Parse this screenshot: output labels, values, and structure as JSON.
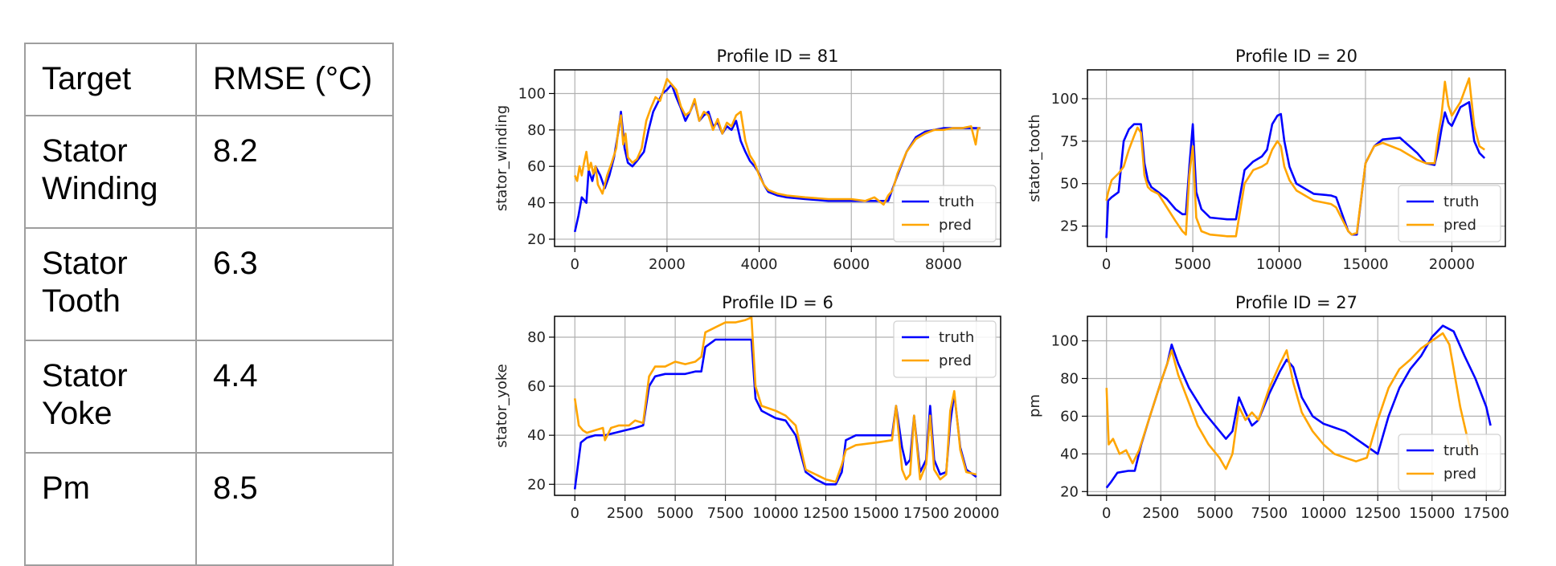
{
  "table": {
    "header": [
      "Target",
      "RMSE (°C)"
    ],
    "rows": [
      [
        "Stator\nWinding",
        "8.2"
      ],
      [
        "Stator\nTooth",
        "6.3"
      ],
      [
        "Stator\nYoke",
        "4.4"
      ],
      [
        "Pm",
        "8.5"
      ]
    ]
  },
  "colors": {
    "truth": "#0000ff",
    "pred": "#ffa500",
    "grid": "#b0b0b0",
    "axis": "#000000"
  },
  "chart_data": [
    {
      "type": "line",
      "title": "Profile ID = 81",
      "ylabel": "stator_winding",
      "xlabel": "",
      "xlim": [
        -440,
        9240
      ],
      "ylim": [
        16,
        113
      ],
      "xticks": [
        0,
        2000,
        4000,
        6000,
        8000
      ],
      "xtick_labels": [
        "0",
        "2000",
        "4000",
        "6000",
        "8000"
      ],
      "yticks": [
        20,
        40,
        60,
        80,
        100
      ],
      "ytick_labels": [
        "20",
        "40",
        "60",
        "80",
        "100"
      ],
      "legend": "lower-right",
      "grid": true,
      "series": [
        {
          "name": "truth",
          "color": "#0000ff",
          "x": [
            0,
            80,
            150,
            250,
            300,
            380,
            450,
            550,
            650,
            750,
            850,
            950,
            1000,
            1080,
            1150,
            1250,
            1350,
            1500,
            1600,
            1700,
            1800,
            1900,
            2000,
            2100,
            2200,
            2300,
            2400,
            2500,
            2600,
            2700,
            2800,
            2900,
            3000,
            3100,
            3200,
            3300,
            3400,
            3500,
            3600,
            3700,
            3800,
            3900,
            4000,
            4100,
            4200,
            4400,
            4600,
            5000,
            5500,
            6000,
            6500,
            6800,
            7000,
            7200,
            7400,
            7600,
            7800,
            8000,
            8200,
            8400,
            8600,
            8800
          ],
          "y": [
            24,
            33,
            43,
            40,
            58,
            52,
            60,
            55,
            48,
            55,
            65,
            80,
            90,
            70,
            62,
            60,
            63,
            68,
            80,
            90,
            95,
            100,
            102,
            105,
            98,
            92,
            85,
            90,
            96,
            85,
            88,
            90,
            82,
            84,
            78,
            82,
            80,
            85,
            74,
            68,
            63,
            60,
            56,
            50,
            46,
            44,
            43,
            42,
            41,
            41,
            41,
            41,
            55,
            68,
            76,
            79,
            80,
            81,
            81,
            81,
            81,
            81
          ]
        },
        {
          "name": "pred",
          "color": "#ffa500",
          "x": [
            0,
            50,
            100,
            150,
            200,
            250,
            300,
            350,
            400,
            450,
            500,
            600,
            700,
            800,
            900,
            950,
            1000,
            1050,
            1100,
            1150,
            1250,
            1350,
            1450,
            1550,
            1650,
            1750,
            1850,
            1950,
            2000,
            2100,
            2200,
            2300,
            2400,
            2500,
            2600,
            2700,
            2800,
            2900,
            3000,
            3100,
            3200,
            3300,
            3400,
            3500,
            3600,
            3700,
            3800,
            3900,
            4000,
            4100,
            4200,
            4400,
            4600,
            5000,
            5500,
            6000,
            6300,
            6500,
            6700,
            6800,
            6900,
            7000,
            7200,
            7400,
            7600,
            7800,
            8000,
            8200,
            8400,
            8600,
            8700,
            8750,
            8800
          ],
          "y": [
            55,
            52,
            60,
            55,
            62,
            68,
            58,
            62,
            56,
            60,
            50,
            45,
            55,
            62,
            70,
            82,
            88,
            72,
            78,
            65,
            62,
            64,
            70,
            85,
            92,
            98,
            96,
            104,
            108,
            105,
            102,
            93,
            88,
            90,
            97,
            85,
            90,
            88,
            80,
            86,
            78,
            84,
            82,
            88,
            90,
            74,
            66,
            62,
            55,
            50,
            47,
            45,
            44,
            43,
            42,
            42,
            41,
            43,
            39,
            44,
            47,
            56,
            68,
            75,
            78,
            80,
            80,
            81,
            81,
            82,
            72,
            81,
            81
          ]
        }
      ]
    },
    {
      "type": "line",
      "title": "Profile ID = 20",
      "ylabel": "stator_tooth",
      "xlabel": "",
      "xlim": [
        -1100,
        23100
      ],
      "ylim": [
        13,
        117
      ],
      "xticks": [
        0,
        5000,
        10000,
        15000,
        20000
      ],
      "xtick_labels": [
        "0",
        "5000",
        "10000",
        "15000",
        "20000"
      ],
      "yticks": [
        25,
        50,
        75,
        100
      ],
      "ytick_labels": [
        "25",
        "50",
        "75",
        "100"
      ],
      "legend": "lower-right",
      "grid": true,
      "series": [
        {
          "name": "truth",
          "color": "#0000ff",
          "x": [
            0,
            100,
            300,
            700,
            1000,
            1300,
            1600,
            1800,
            2000,
            2200,
            2400,
            2600,
            3000,
            3500,
            4000,
            4400,
            4600,
            4800,
            5000,
            5200,
            5500,
            6000,
            7000,
            7500,
            8000,
            8500,
            9000,
            9300,
            9600,
            9900,
            10100,
            10300,
            10600,
            11000,
            12000,
            13000,
            13300,
            14000,
            14200,
            14500,
            15000,
            15500,
            16000,
            17000,
            18000,
            18500,
            19000,
            19200,
            19400,
            19600,
            19800,
            20000,
            20500,
            21000,
            21300,
            21600,
            21900
          ],
          "y": [
            18,
            40,
            42,
            45,
            75,
            82,
            85,
            85,
            85,
            62,
            52,
            48,
            45,
            41,
            35,
            32,
            32,
            60,
            85,
            45,
            35,
            30,
            29,
            29,
            58,
            63,
            66,
            70,
            85,
            90,
            91,
            75,
            60,
            50,
            44,
            43,
            42,
            22,
            20,
            20,
            62,
            72,
            76,
            77,
            68,
            62,
            61,
            70,
            82,
            92,
            86,
            84,
            95,
            98,
            75,
            68,
            65
          ]
        },
        {
          "name": "pred",
          "color": "#ffa500",
          "x": [
            0,
            100,
            300,
            700,
            1000,
            1300,
            1600,
            1800,
            2000,
            2200,
            2400,
            2600,
            3000,
            3500,
            4000,
            4400,
            4600,
            4800,
            5000,
            5200,
            5500,
            6000,
            7000,
            7500,
            8000,
            8500,
            9000,
            9300,
            9600,
            9900,
            10100,
            10300,
            10600,
            11000,
            12000,
            13000,
            13300,
            14000,
            14200,
            14500,
            15000,
            15500,
            16000,
            17000,
            18000,
            18500,
            19000,
            19200,
            19400,
            19600,
            19800,
            20000,
            20500,
            21000,
            21300,
            21600,
            21900
          ],
          "y": [
            40,
            45,
            52,
            56,
            60,
            70,
            78,
            83,
            80,
            55,
            48,
            46,
            44,
            36,
            28,
            22,
            20,
            55,
            72,
            30,
            22,
            20,
            19,
            19,
            50,
            58,
            60,
            62,
            70,
            75,
            72,
            60,
            52,
            46,
            40,
            38,
            36,
            22,
            20,
            21,
            62,
            72,
            74,
            70,
            64,
            62,
            62,
            78,
            90,
            110,
            96,
            90,
            98,
            112,
            84,
            72,
            70
          ]
        }
      ]
    },
    {
      "type": "line",
      "title": "Profile ID = 6",
      "ylabel": "stator_yoke",
      "xlabel": "",
      "xlim": [
        -1010,
        21210
      ],
      "ylim": [
        15.5,
        88.5
      ],
      "xticks": [
        0,
        2500,
        5000,
        7500,
        10000,
        12500,
        15000,
        17500,
        20000
      ],
      "xtick_labels": [
        "0",
        "2500",
        "5000",
        "7500",
        "10000",
        "12500",
        "15000",
        "17500",
        "20000"
      ],
      "yticks": [
        20,
        40,
        60,
        80
      ],
      "ytick_labels": [
        "20",
        "40",
        "60",
        "80"
      ],
      "legend": "upper-right",
      "grid": true,
      "series": [
        {
          "name": "truth",
          "color": "#0000ff",
          "x": [
            0,
            300,
            600,
            1000,
            1500,
            2000,
            2500,
            3000,
            3400,
            3700,
            4000,
            4500,
            5000,
            5500,
            6000,
            6300,
            6500,
            7000,
            8000,
            8800,
            9000,
            9300,
            10000,
            10500,
            11000,
            11500,
            12000,
            12500,
            13000,
            13300,
            13500,
            14000,
            15000,
            15800,
            16000,
            16300,
            16500,
            16700,
            16900,
            17200,
            17500,
            17700,
            17900,
            18200,
            18500,
            18700,
            18900,
            19200,
            19500,
            20000
          ],
          "y": [
            18,
            37,
            39,
            40,
            40,
            41,
            42,
            43,
            44,
            60,
            64,
            65,
            65,
            65,
            66,
            66,
            76,
            79,
            79,
            79,
            55,
            50,
            47,
            46,
            40,
            25,
            22,
            20,
            20,
            25,
            38,
            40,
            40,
            40,
            52,
            35,
            28,
            30,
            48,
            25,
            30,
            52,
            30,
            24,
            25,
            45,
            57,
            35,
            26,
            23
          ]
        },
        {
          "name": "pred",
          "color": "#ffa500",
          "x": [
            0,
            200,
            400,
            600,
            1000,
            1400,
            1500,
            1800,
            2200,
            2700,
            3000,
            3400,
            3700,
            4000,
            4500,
            5000,
            5500,
            6000,
            6300,
            6500,
            7000,
            7500,
            8000,
            8500,
            8800,
            9000,
            9300,
            10000,
            10500,
            11000,
            11500,
            12000,
            12500,
            13000,
            13300,
            13500,
            14000,
            15000,
            15800,
            16000,
            16300,
            16500,
            16700,
            16900,
            17200,
            17500,
            17700,
            17900,
            18200,
            18500,
            18700,
            18900,
            19200,
            19500,
            20000
          ],
          "y": [
            55,
            44,
            42,
            41,
            42,
            43,
            38,
            43,
            44,
            44,
            46,
            45,
            64,
            68,
            68,
            70,
            69,
            70,
            72,
            82,
            84,
            86,
            86,
            87,
            88,
            60,
            52,
            50,
            48,
            44,
            26,
            24,
            22,
            21,
            28,
            34,
            36,
            37,
            38,
            52,
            26,
            22,
            24,
            48,
            22,
            28,
            48,
            26,
            22,
            24,
            50,
            58,
            34,
            25,
            24
          ]
        }
      ]
    },
    {
      "type": "line",
      "title": "Profile ID = 27",
      "ylabel": "pm",
      "xlabel": "",
      "xlim": [
        -880,
        18380
      ],
      "ylim": [
        18,
        113
      ],
      "xticks": [
        0,
        2500,
        5000,
        7500,
        10000,
        12500,
        15000,
        17500
      ],
      "xtick_labels": [
        "0",
        "2500",
        "5000",
        "7500",
        "10000",
        "12500",
        "15000",
        "17500"
      ],
      "yticks": [
        20,
        40,
        60,
        80,
        100
      ],
      "ytick_labels": [
        "20",
        "40",
        "60",
        "80",
        "100"
      ],
      "legend": "lower-right",
      "grid": true,
      "series": [
        {
          "name": "truth",
          "color": "#0000ff",
          "x": [
            0,
            200,
            500,
            1000,
            1300,
            1600,
            2000,
            2500,
            2800,
            3000,
            3300,
            3800,
            4500,
            5000,
            5500,
            5800,
            6100,
            6400,
            6700,
            7000,
            7500,
            8000,
            8300,
            8600,
            9000,
            9500,
            10000,
            10500,
            11000,
            11500,
            12000,
            12500,
            13000,
            13500,
            14000,
            14500,
            15000,
            15500,
            16000,
            16500,
            17000,
            17500,
            17700
          ],
          "y": [
            22,
            25,
            30,
            31,
            31,
            45,
            60,
            78,
            88,
            98,
            88,
            75,
            62,
            55,
            48,
            52,
            70,
            62,
            55,
            58,
            72,
            84,
            90,
            86,
            70,
            60,
            56,
            54,
            52,
            48,
            44,
            40,
            60,
            75,
            85,
            92,
            102,
            108,
            105,
            92,
            80,
            65,
            55
          ]
        },
        {
          "name": "pred",
          "color": "#ffa500",
          "x": [
            0,
            100,
            300,
            600,
            900,
            1200,
            1500,
            2000,
            2500,
            2800,
            3000,
            3300,
            3700,
            4200,
            4700,
            5200,
            5500,
            5800,
            6100,
            6400,
            6700,
            7000,
            7500,
            8000,
            8300,
            8600,
            9000,
            9500,
            10000,
            10500,
            11000,
            11500,
            12000,
            12500,
            13000,
            13500,
            14000,
            14500,
            15000,
            15500,
            15800,
            16000,
            16300,
            16600,
            16800
          ],
          "y": [
            75,
            45,
            48,
            40,
            42,
            35,
            42,
            60,
            78,
            88,
            95,
            82,
            70,
            55,
            45,
            38,
            32,
            40,
            65,
            58,
            62,
            58,
            75,
            88,
            95,
            78,
            62,
            52,
            45,
            40,
            38,
            36,
            38,
            58,
            75,
            85,
            90,
            96,
            100,
            104,
            98,
            85,
            65,
            50,
            40
          ]
        }
      ]
    }
  ]
}
